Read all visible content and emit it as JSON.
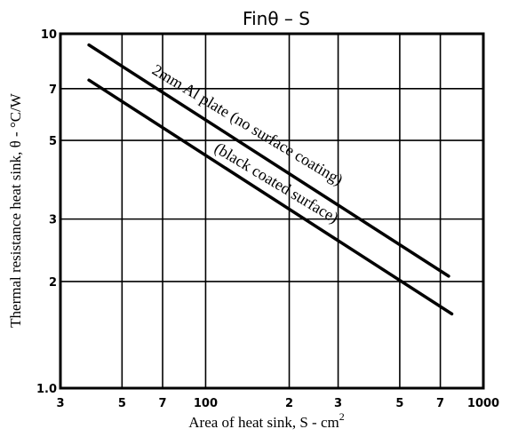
{
  "chart_data": {
    "type": "line",
    "title": "Finθ  –  S",
    "xlabel": "Area of heat sink, S - cm",
    "xlabel_superscript": "2",
    "ylabel": "Thermal resistance heat sink, θ - °C/W",
    "x_scale": "log",
    "y_scale": "log",
    "xlim": [
      30,
      1000
    ],
    "ylim": [
      1.0,
      10
    ],
    "grid": true,
    "x_ticks": [
      {
        "value": 30,
        "label": "3"
      },
      {
        "value": 50,
        "label": "5"
      },
      {
        "value": 70,
        "label": "7"
      },
      {
        "value": 100,
        "label": "100"
      },
      {
        "value": 200,
        "label": "2"
      },
      {
        "value": 300,
        "label": "3"
      },
      {
        "value": 500,
        "label": "5"
      },
      {
        "value": 700,
        "label": "7"
      },
      {
        "value": 1000,
        "label": "1000"
      }
    ],
    "y_ticks": [
      {
        "value": 1.0,
        "label": "1.0"
      },
      {
        "value": 2,
        "label": "2"
      },
      {
        "value": 3,
        "label": "3"
      },
      {
        "value": 5,
        "label": "5"
      },
      {
        "value": 7,
        "label": "7"
      },
      {
        "value": 10,
        "label": "10"
      }
    ],
    "series": [
      {
        "name": "2mm Al plate (no surface coating)",
        "x": [
          38,
          750
        ],
        "y": [
          9.3,
          2.07
        ]
      },
      {
        "name": "(black coated surface)",
        "x": [
          38,
          770
        ],
        "y": [
          7.4,
          1.62
        ]
      }
    ]
  }
}
